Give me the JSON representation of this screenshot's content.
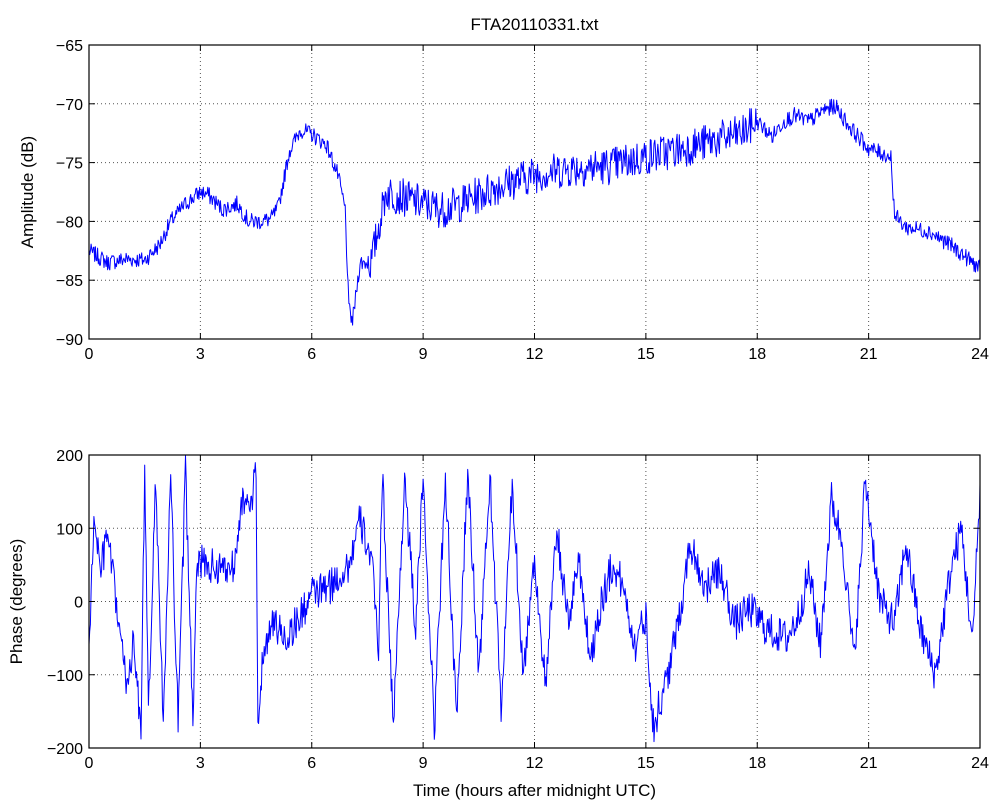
{
  "chart_data": [
    {
      "type": "line",
      "title": "FTA20110331.txt",
      "xlabel": "",
      "ylabel": "Amplitude (dB)",
      "xlim": [
        0,
        24
      ],
      "ylim": [
        -90,
        -65
      ],
      "xticks": [
        "0",
        "3",
        "6",
        "9",
        "12",
        "15",
        "18",
        "21",
        "24"
      ],
      "yticks": [
        "−90",
        "−85",
        "−80",
        "−75",
        "−70",
        "−65"
      ],
      "grid": true,
      "color": "#0000ff",
      "series": [
        {
          "x": [
            0,
            0.25,
            0.5,
            1.0,
            1.5,
            1.9,
            2.2,
            2.6,
            3.0,
            3.2,
            3.6,
            4.0,
            4.3,
            4.6,
            4.9,
            5.1,
            5.4,
            5.7,
            6.0,
            6.4,
            6.7,
            6.9,
            7.0,
            7.1,
            7.3,
            7.6,
            8.0,
            8.5,
            9.0,
            9.5,
            10.0,
            11.0,
            12.0,
            13.0,
            14.0,
            15.0,
            16.0,
            17.0,
            17.6,
            18.0,
            18.4,
            18.7,
            19.0,
            19.4,
            19.8,
            20.1,
            20.5,
            21.0,
            21.6,
            21.7,
            22.0,
            22.6,
            23.2,
            24.0
          ],
          "y": [
            -82.5,
            -83,
            -83.5,
            -83.2,
            -83.3,
            -82,
            -80,
            -78.5,
            -77.5,
            -77.7,
            -79,
            -78.5,
            -80.0,
            -80.0,
            -79.8,
            -78.8,
            -74,
            -72.2,
            -72.6,
            -73.5,
            -76,
            -79,
            -87.5,
            -88.5,
            -83.5,
            -83.5,
            -77.5,
            -78,
            -78.5,
            -79,
            -78.5,
            -77,
            -76,
            -75.5,
            -75.3,
            -74.5,
            -73.8,
            -73,
            -72.5,
            -71.5,
            -72.8,
            -71.5,
            -71.0,
            -71.5,
            -70.5,
            -70.2,
            -72,
            -73.8,
            -74.5,
            -79.5,
            -80.5,
            -80.8,
            -82,
            -84
          ]
        }
      ]
    },
    {
      "type": "line",
      "title": "",
      "xlabel": "Time (hours after midnight UTC)",
      "ylabel": "Phase (degrees)",
      "xlim": [
        0,
        24
      ],
      "ylim": [
        -200,
        200
      ],
      "xticks": [
        "0",
        "3",
        "6",
        "9",
        "12",
        "15",
        "18",
        "21",
        "24"
      ],
      "yticks": [
        "−200",
        "−100",
        "0",
        "100",
        "200"
      ],
      "grid": true,
      "color": "#0000ff",
      "series": [
        {
          "x": [
            0,
            0.15,
            0.3,
            0.5,
            0.7,
            1.0,
            1.2,
            1.4,
            1.5,
            1.6,
            1.8,
            2.0,
            2.2,
            2.4,
            2.6,
            2.8,
            2.9,
            3.1,
            3.5,
            3.9,
            4.1,
            4.3,
            4.5,
            4.55,
            4.7,
            5.0,
            5.3,
            5.7,
            6.0,
            6.5,
            7.0,
            7.3,
            7.6,
            7.8,
            7.9,
            8.2,
            8.5,
            8.8,
            9.0,
            9.3,
            9.6,
            9.9,
            10.2,
            10.5,
            10.8,
            11.1,
            11.4,
            11.7,
            12.0,
            12.3,
            12.6,
            12.9,
            13.2,
            13.5,
            13.8,
            14.1,
            14.4,
            14.7,
            15.0,
            15.2,
            15.5,
            15.8,
            16.2,
            16.6,
            17.0,
            17.4,
            17.8,
            18.3,
            18.8,
            19.1,
            19.4,
            19.7,
            20.0,
            20.3,
            20.6,
            20.8,
            20.9,
            21.3,
            21.7,
            22.0,
            22.4,
            22.8,
            23.2,
            23.5,
            23.8,
            24.0
          ],
          "y": [
            -60,
            120,
            40,
            90,
            10,
            -110,
            -60,
            -170,
            175,
            -160,
            170,
            -175,
            170,
            -170,
            175,
            -160,
            60,
            50,
            45,
            50,
            140,
            120,
            170,
            -170,
            -60,
            -30,
            -50,
            -20,
            10,
            20,
            50,
            110,
            60,
            -60,
            175,
            -170,
            170,
            -40,
            170,
            -175,
            175,
            -170,
            175,
            -100,
            170,
            -150,
            160,
            -100,
            60,
            -120,
            100,
            -30,
            60,
            -80,
            0,
            50,
            20,
            -60,
            -20,
            -170,
            -120,
            -50,
            80,
            20,
            40,
            -30,
            -10,
            -40,
            -50,
            -20,
            40,
            -60,
            140,
            80,
            -80,
            60,
            170,
            0,
            -30,
            80,
            -40,
            -100,
            40,
            100,
            -60,
            160
          ]
        }
      ]
    }
  ]
}
